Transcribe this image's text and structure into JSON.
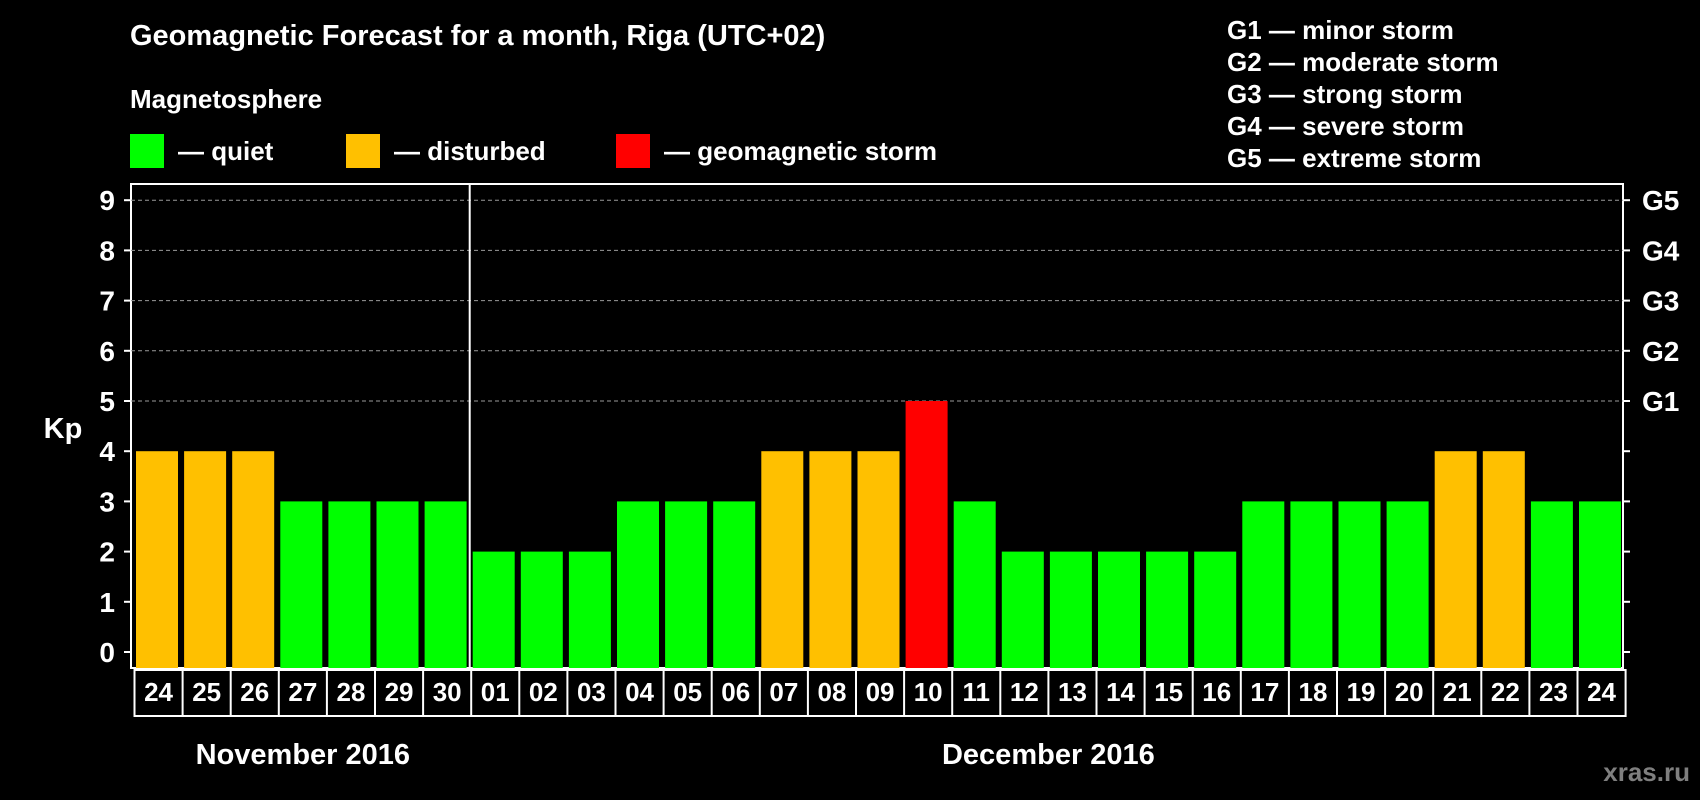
{
  "header": {
    "title": "Geomagnetic Forecast for a month, Riga (UTC+02)",
    "subtitle": "Magnetosphere",
    "watermark": "xras.ru"
  },
  "legend": [
    {
      "label": "— quiet",
      "color": "#00ff00"
    },
    {
      "label": "— disturbed",
      "color": "#ffc000"
    },
    {
      "label": "— geomagnetic storm",
      "color": "#ff0000"
    }
  ],
  "storm_scale": [
    "G1 — minor storm",
    "G2 — moderate storm",
    "G3 — strong storm",
    "G4 — severe storm",
    "G5 — extreme storm"
  ],
  "colors": {
    "quiet": "#00ff00",
    "disturbed": "#ffc000",
    "storm": "#ff0000"
  },
  "chart_data": {
    "type": "bar",
    "title": "Geomagnetic Forecast for a month, Riga (UTC+02)",
    "ylabel": "Kp",
    "ylim": [
      0,
      9
    ],
    "yticks": [
      0,
      1,
      2,
      3,
      4,
      5,
      6,
      7,
      8,
      9
    ],
    "grid": "dashed horizontal at Kp 5–9",
    "right_axis_labels": [
      {
        "kp": 5,
        "label": "G1"
      },
      {
        "kp": 6,
        "label": "G2"
      },
      {
        "kp": 7,
        "label": "G3"
      },
      {
        "kp": 8,
        "label": "G4"
      },
      {
        "kp": 9,
        "label": "G5"
      }
    ],
    "categories": [
      "24",
      "25",
      "26",
      "27",
      "28",
      "29",
      "30",
      "01",
      "02",
      "03",
      "04",
      "05",
      "06",
      "07",
      "08",
      "09",
      "10",
      "11",
      "12",
      "13",
      "14",
      "15",
      "16",
      "17",
      "18",
      "19",
      "20",
      "21",
      "22",
      "23",
      "24"
    ],
    "values": [
      4,
      4,
      4,
      3,
      3,
      3,
      3,
      2,
      2,
      2,
      3,
      3,
      3,
      4,
      4,
      4,
      5,
      3,
      2,
      2,
      2,
      2,
      2,
      3,
      3,
      3,
      3,
      4,
      4,
      3,
      3
    ],
    "status": [
      "disturbed",
      "disturbed",
      "disturbed",
      "quiet",
      "quiet",
      "quiet",
      "quiet",
      "quiet",
      "quiet",
      "quiet",
      "quiet",
      "quiet",
      "quiet",
      "disturbed",
      "disturbed",
      "disturbed",
      "storm",
      "quiet",
      "quiet",
      "quiet",
      "quiet",
      "quiet",
      "quiet",
      "quiet",
      "quiet",
      "quiet",
      "quiet",
      "disturbed",
      "disturbed",
      "quiet",
      "quiet"
    ],
    "months": [
      {
        "label": "November 2016",
        "start_index": 0,
        "end_index": 6
      },
      {
        "label": "December 2016",
        "start_index": 7,
        "end_index": 30
      }
    ]
  }
}
